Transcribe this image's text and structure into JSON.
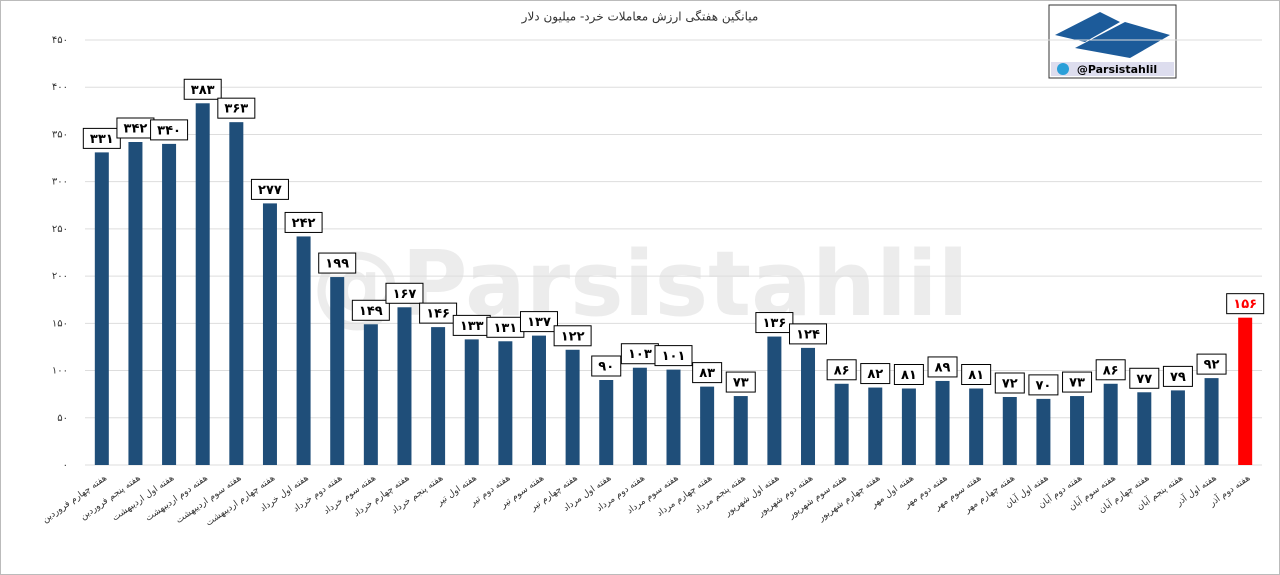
{
  "chart_data": {
    "type": "bar",
    "title": "میانگین هفتگی ارزش معاملات خرد- میلیون دلار",
    "watermark": "@Parsistahlil",
    "logo_text": "@Parsistahlil",
    "categories": [
      "هفته چهارم فروردین",
      "هفته پنجم فروردین",
      "هفته اول اردیبهشت",
      "هفته دوم اردیبهشت",
      "هفته سوم اردیبهشت",
      "هفته چهارم اردیبهشت",
      "هفته اول خرداد",
      "هفته دوم خرداد",
      "هفته سوم خرداد",
      "هفته چهارم خرداد",
      "هفته پنجم خرداد",
      "هفته اول تیر",
      "هفته دوم تیر",
      "هفته سوم تیر",
      "هفته چهارم تیر",
      "هفته اول مرداد",
      "هفته دوم مرداد",
      "هفته سوم مرداد",
      "هفته چهارم مرداد",
      "هفته پنجم مرداد",
      "هفته اول شهریور",
      "هفته دوم شهریور",
      "هفته سوم شهریور",
      "هفته چهارم شهریور",
      "هفته اول مهر",
      "هفته دوم مهر",
      "هفته سوم مهر",
      "هفته چهارم مهر",
      "هفته اول آبان",
      "هفته دوم آبان",
      "هفته سوم آبان",
      "هفته چهارم آبان",
      "هفته پنجم آبان",
      "هفته اول آذر",
      "هفته دوم آذر"
    ],
    "values": [
      331,
      342,
      340,
      383,
      363,
      277,
      242,
      199,
      149,
      167,
      146,
      133,
      131,
      137,
      122,
      90,
      103,
      101,
      83,
      73,
      136,
      124,
      86,
      82,
      81,
      89,
      81,
      72,
      70,
      73,
      86,
      77,
      79,
      92,
      156
    ],
    "value_labels": [
      "۳۳۱",
      "۳۴۲",
      "۳۴۰",
      "۳۸۳",
      "۳۶۳",
      "۲۷۷",
      "۲۴۲",
      "۱۹۹",
      "۱۴۹",
      "۱۶۷",
      "۱۴۶",
      "۱۳۳",
      "۱۳۱",
      "۱۳۷",
      "۱۲۲",
      "۹۰",
      "۱۰۳",
      "۱۰۱",
      "۸۳",
      "۷۳",
      "۱۳۶",
      "۱۲۴",
      "۸۶",
      "۸۲",
      "۸۱",
      "۸۹",
      "۸۱",
      "۷۲",
      "۷۰",
      "۷۳",
      "۸۶",
      "۷۷",
      "۷۹",
      "۹۲",
      "۱۵۶"
    ],
    "colors": [
      "#1f4e79",
      "#1f4e79",
      "#1f4e79",
      "#1f4e79",
      "#1f4e79",
      "#1f4e79",
      "#1f4e79",
      "#1f4e79",
      "#1f4e79",
      "#1f4e79",
      "#1f4e79",
      "#1f4e79",
      "#1f4e79",
      "#1f4e79",
      "#1f4e79",
      "#1f4e79",
      "#1f4e79",
      "#1f4e79",
      "#1f4e79",
      "#1f4e79",
      "#1f4e79",
      "#1f4e79",
      "#1f4e79",
      "#1f4e79",
      "#1f4e79",
      "#1f4e79",
      "#1f4e79",
      "#1f4e79",
      "#1f4e79",
      "#1f4e79",
      "#1f4e79",
      "#1f4e79",
      "#1f4e79",
      "#1f4e79",
      "#ff0000"
    ],
    "ylim": [
      0,
      450
    ],
    "yticks": [
      {
        "value": 0,
        "label": "۰"
      },
      {
        "value": 50,
        "label": "۵۰"
      },
      {
        "value": 100,
        "label": "۱۰۰"
      },
      {
        "value": 150,
        "label": "۱۵۰"
      },
      {
        "value": 200,
        "label": "۲۰۰"
      },
      {
        "value": 250,
        "label": "۲۵۰"
      },
      {
        "value": 300,
        "label": "۳۰۰"
      },
      {
        "value": 350,
        "label": "۳۵۰"
      },
      {
        "value": 400,
        "label": "۴۰۰"
      },
      {
        "value": 450,
        "label": "۴۵۰"
      }
    ],
    "grid": true
  }
}
